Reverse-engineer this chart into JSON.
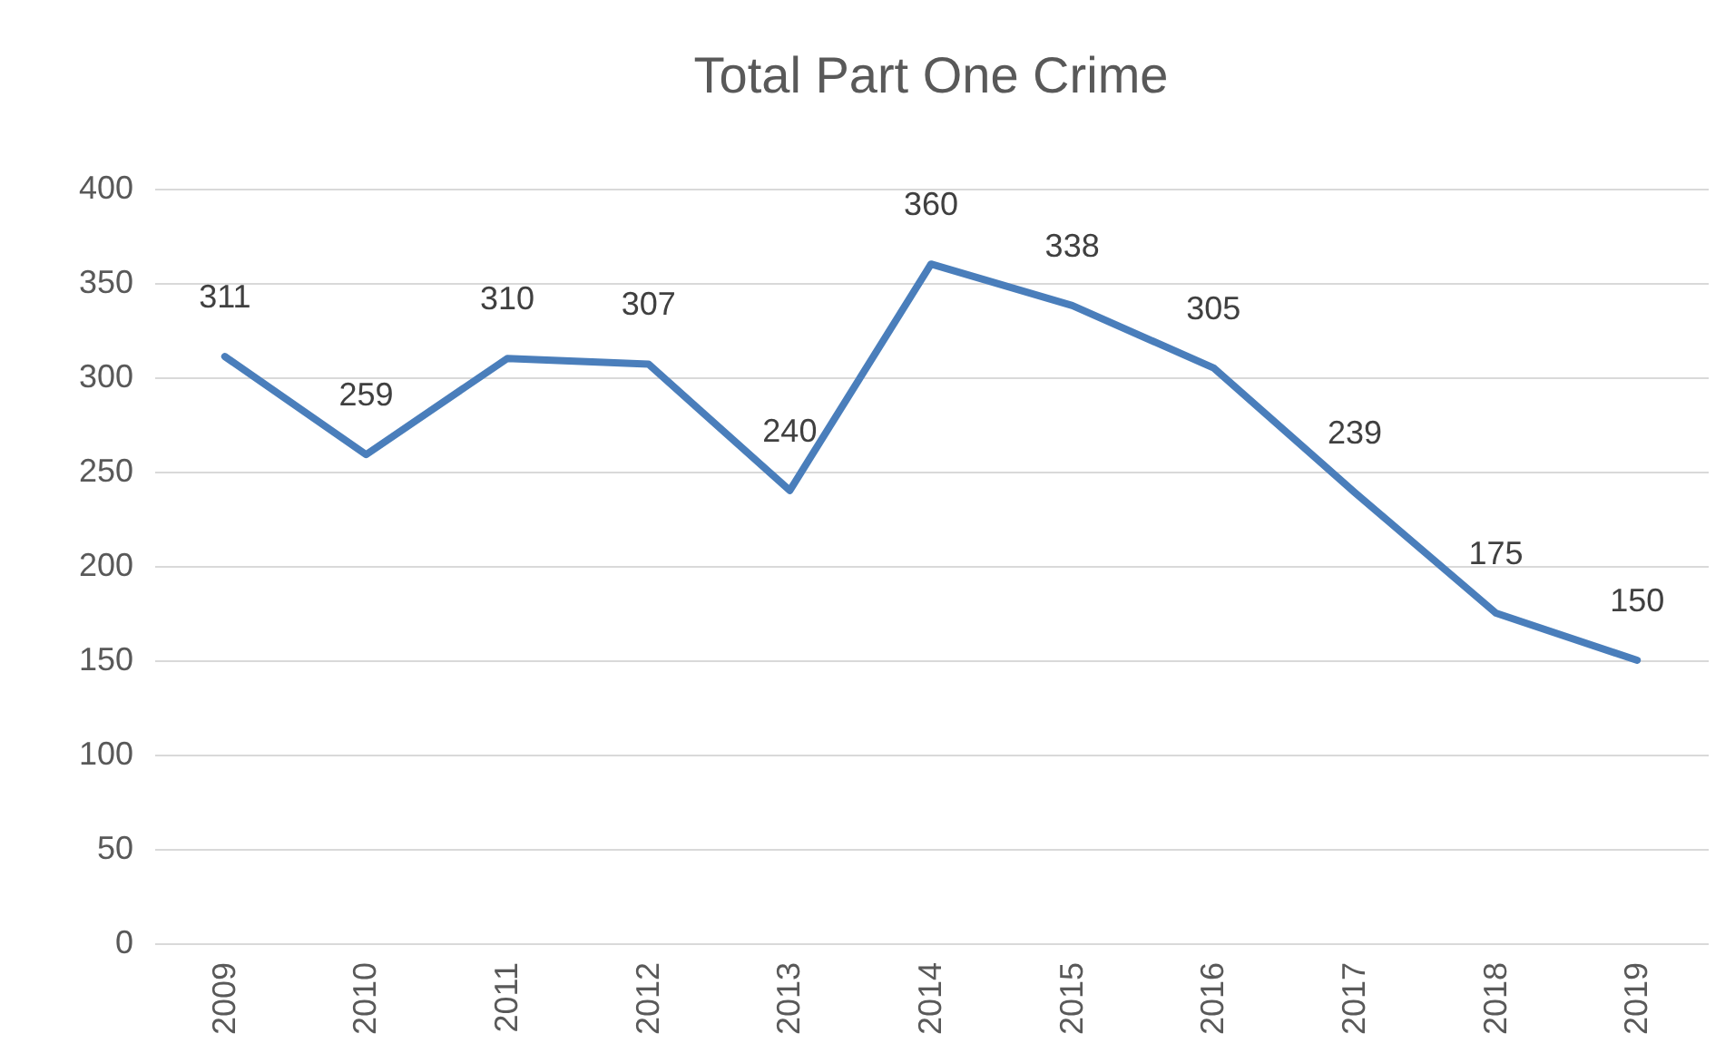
{
  "chart_data": {
    "type": "line",
    "title": "Total Part One Crime",
    "categories": [
      "2009",
      "2010",
      "2011",
      "2012",
      "2013",
      "2014",
      "2015",
      "2016",
      "2017",
      "2018",
      "2019"
    ],
    "series": [
      {
        "color": "#4a7ebb",
        "values": [
          311,
          259,
          310,
          307,
          240,
          360,
          338,
          305,
          239,
          175,
          150
        ]
      }
    ],
    "ylim": [
      0,
      400
    ],
    "yticks": [
      0,
      50,
      100,
      150,
      200,
      250,
      300,
      350,
      400
    ],
    "grid": "y",
    "data_labels": true,
    "legend": false,
    "marker": "none",
    "line_style": "solid"
  }
}
